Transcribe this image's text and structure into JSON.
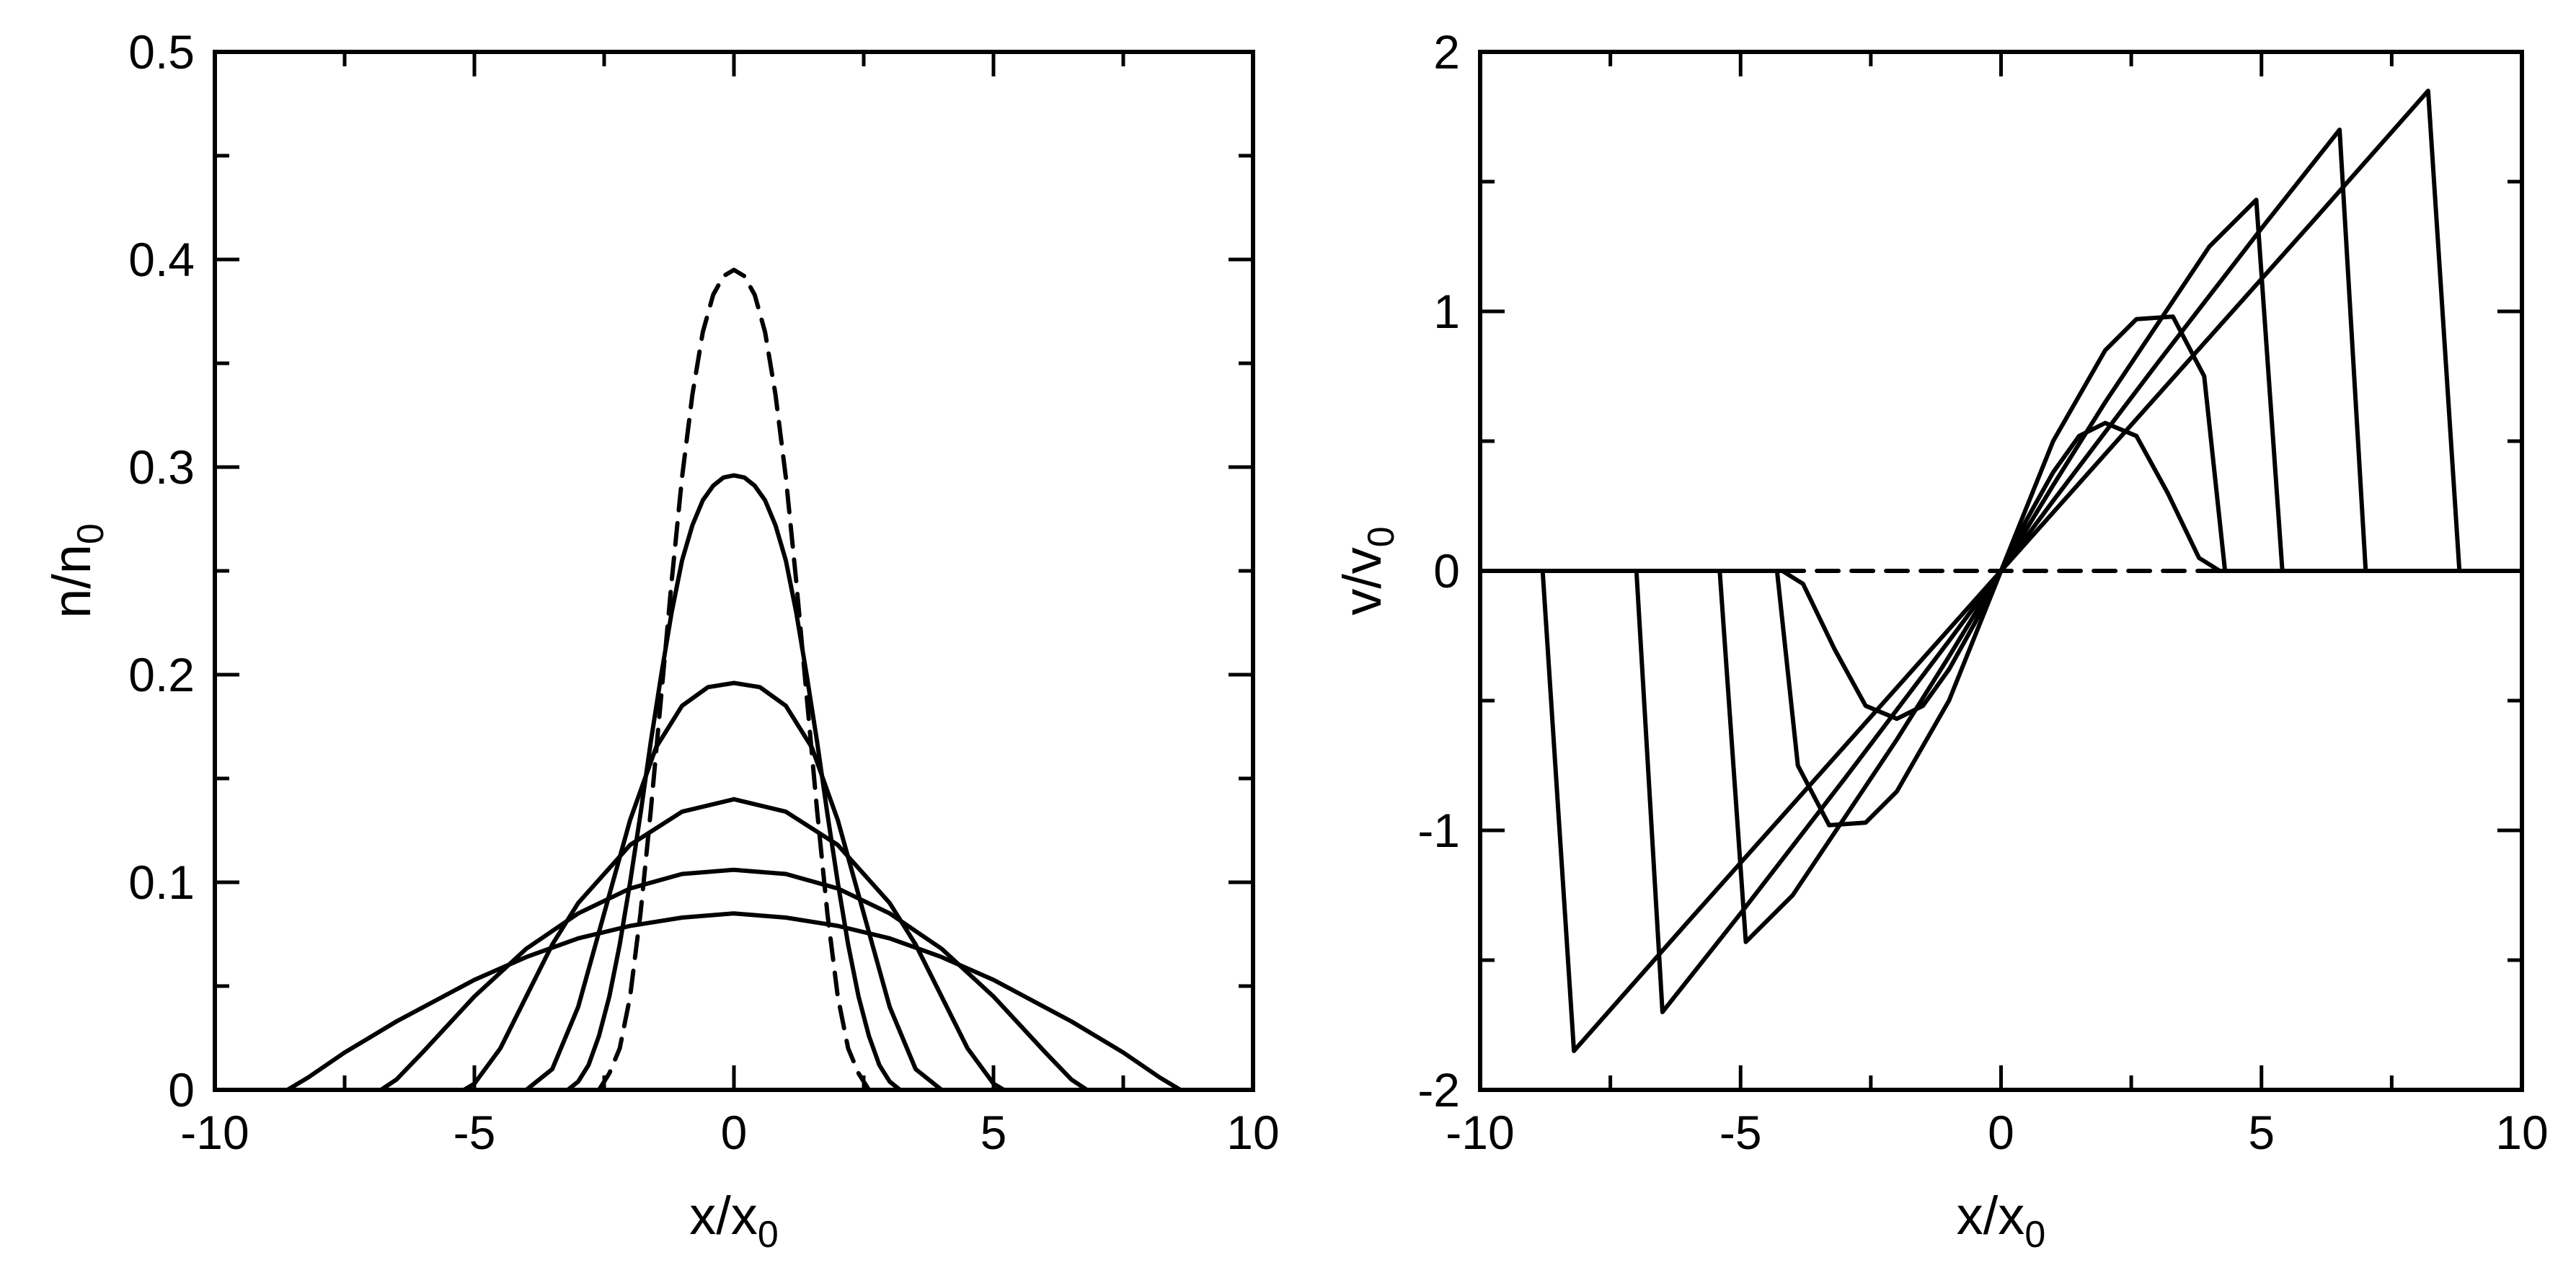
{
  "chart_data": [
    {
      "type": "line",
      "xlabel": "x/x",
      "xlabel_sub": "0",
      "ylabel": "n/n",
      "ylabel_sub": "0",
      "xlim": [
        -10,
        10
      ],
      "ylim": [
        0,
        0.5
      ],
      "x_ticks": [
        -10,
        -5,
        0,
        5,
        10
      ],
      "x_tick_labels": [
        "-10",
        "-5",
        "0",
        "5",
        "10"
      ],
      "y_ticks": [
        0,
        0.1,
        0.2,
        0.3,
        0.4,
        0.5
      ],
      "y_tick_labels": [
        "0",
        "0.1",
        "0.2",
        "0.3",
        "0.4",
        "0.5"
      ],
      "grid": false,
      "legend": false,
      "line_color": "#000000",
      "series": [
        {
          "style": "dashed",
          "x": [
            -2.6,
            -2.4,
            -2.2,
            -2.0,
            -1.8,
            -1.6,
            -1.4,
            -1.2,
            -1.0,
            -0.8,
            -0.6,
            -0.4,
            -0.2,
            0,
            0.2,
            0.4,
            0.6,
            0.8,
            1.0,
            1.2,
            1.4,
            1.6,
            1.8,
            2.0,
            2.2,
            2.4,
            2.6
          ],
          "y": [
            0.0,
            0.008,
            0.02,
            0.045,
            0.085,
            0.135,
            0.19,
            0.245,
            0.295,
            0.335,
            0.365,
            0.383,
            0.392,
            0.395,
            0.392,
            0.383,
            0.365,
            0.335,
            0.295,
            0.245,
            0.19,
            0.135,
            0.085,
            0.045,
            0.02,
            0.008,
            0.0
          ]
        },
        {
          "style": "solid",
          "x": [
            -3.2,
            -3.0,
            -2.8,
            -2.6,
            -2.4,
            -2.2,
            -2.0,
            -1.8,
            -1.6,
            -1.4,
            -1.2,
            -1.0,
            -0.8,
            -0.6,
            -0.4,
            -0.2,
            0,
            0.2,
            0.4,
            0.6,
            0.8,
            1.0,
            1.2,
            1.4,
            1.6,
            1.8,
            2.0,
            2.2,
            2.4,
            2.6,
            2.8,
            3.0,
            3.2
          ],
          "y": [
            0.0,
            0.004,
            0.012,
            0.026,
            0.045,
            0.07,
            0.1,
            0.133,
            0.168,
            0.2,
            0.23,
            0.255,
            0.272,
            0.284,
            0.291,
            0.295,
            0.296,
            0.295,
            0.291,
            0.284,
            0.272,
            0.255,
            0.23,
            0.2,
            0.168,
            0.133,
            0.1,
            0.07,
            0.045,
            0.026,
            0.012,
            0.004,
            0.0
          ]
        },
        {
          "style": "solid",
          "x": [
            -4.0,
            -3.5,
            -3.0,
            -2.5,
            -2.0,
            -1.5,
            -1.0,
            -0.5,
            0,
            0.5,
            1.0,
            1.5,
            2.0,
            2.5,
            3.0,
            3.5,
            4.0
          ],
          "y": [
            0.0,
            0.01,
            0.04,
            0.085,
            0.13,
            0.165,
            0.185,
            0.194,
            0.196,
            0.194,
            0.185,
            0.165,
            0.13,
            0.085,
            0.04,
            0.01,
            0.0
          ]
        },
        {
          "style": "solid",
          "x": [
            -5.2,
            -5.0,
            -4.5,
            -4.0,
            -3.5,
            -3.0,
            -2.0,
            -1.0,
            0,
            1.0,
            2.0,
            3.0,
            3.5,
            4.0,
            4.5,
            5.0,
            5.2
          ],
          "y": [
            0.0,
            0.003,
            0.02,
            0.045,
            0.07,
            0.09,
            0.118,
            0.134,
            0.14,
            0.134,
            0.118,
            0.09,
            0.07,
            0.045,
            0.02,
            0.003,
            0.0
          ]
        },
        {
          "style": "solid",
          "x": [
            -6.8,
            -6.5,
            -6.0,
            -5.0,
            -4.0,
            -3.0,
            -2.0,
            -1.0,
            0,
            1.0,
            2.0,
            3.0,
            4.0,
            5.0,
            6.0,
            6.5,
            6.8
          ],
          "y": [
            0.0,
            0.005,
            0.018,
            0.045,
            0.068,
            0.085,
            0.097,
            0.104,
            0.106,
            0.104,
            0.097,
            0.085,
            0.068,
            0.045,
            0.018,
            0.005,
            0.0
          ]
        },
        {
          "style": "solid",
          "x": [
            -8.6,
            -8.2,
            -7.5,
            -6.5,
            -5.0,
            -4.0,
            -3.0,
            -2.0,
            -1.0,
            0,
            1.0,
            2.0,
            3.0,
            4.0,
            5.0,
            6.5,
            7.5,
            8.2,
            8.6
          ],
          "y": [
            0.0,
            0.006,
            0.018,
            0.033,
            0.053,
            0.064,
            0.073,
            0.079,
            0.083,
            0.085,
            0.083,
            0.079,
            0.073,
            0.064,
            0.053,
            0.033,
            0.018,
            0.006,
            0.0
          ]
        }
      ]
    },
    {
      "type": "line",
      "xlabel": "x/x",
      "xlabel_sub": "0",
      "ylabel": "v/v",
      "ylabel_sub": "0",
      "xlim": [
        -10,
        10
      ],
      "ylim": [
        -2,
        2
      ],
      "x_ticks": [
        -10,
        -5,
        0,
        5,
        10
      ],
      "x_tick_labels": [
        "-10",
        "-5",
        "0",
        "5",
        "10"
      ],
      "y_ticks": [
        -2,
        -1,
        0,
        1,
        2
      ],
      "y_tick_labels": [
        "-2",
        "-1",
        "0",
        "1",
        "2"
      ],
      "grid": false,
      "legend": false,
      "line_color": "#000000",
      "series": [
        {
          "style": "dashed",
          "x": [
            -4.2,
            4.2
          ],
          "y": [
            0,
            0
          ]
        },
        {
          "style": "solid",
          "x": [
            -10,
            -4.2,
            -3.8,
            -3.2,
            -2.6,
            -2.0,
            -1.5,
            -1.0,
            -0.5,
            0,
            0.5,
            1.0,
            1.5,
            2.0,
            2.6,
            3.2,
            3.8,
            4.2,
            10
          ],
          "y": [
            0,
            0,
            -0.05,
            -0.3,
            -0.52,
            -0.57,
            -0.52,
            -0.38,
            -0.2,
            0,
            0.2,
            0.38,
            0.52,
            0.57,
            0.52,
            0.3,
            0.05,
            0,
            0
          ]
        },
        {
          "style": "solid",
          "x": [
            -10,
            -4.3,
            -3.9,
            -3.3,
            -2.6,
            -2.0,
            -1.0,
            0,
            1.0,
            2.0,
            2.6,
            3.3,
            3.9,
            4.3,
            10
          ],
          "y": [
            0,
            0,
            -0.75,
            -0.98,
            -0.97,
            -0.85,
            -0.5,
            0,
            0.5,
            0.85,
            0.97,
            0.98,
            0.75,
            0,
            0
          ]
        },
        {
          "style": "solid",
          "x": [
            -10,
            -5.4,
            -4.9,
            -4.0,
            -3.0,
            -2.0,
            -1.0,
            0,
            1.0,
            2.0,
            3.0,
            4.0,
            4.9,
            5.4,
            10
          ],
          "y": [
            0,
            0,
            -1.43,
            -1.25,
            -0.95,
            -0.65,
            -0.33,
            0,
            0.33,
            0.65,
            0.95,
            1.25,
            1.43,
            0,
            0
          ]
        },
        {
          "style": "solid",
          "x": [
            -10,
            -7.0,
            -6.5,
            -5.0,
            -3.0,
            -1.0,
            0,
            1.0,
            3.0,
            5.0,
            6.5,
            7.0,
            10
          ],
          "y": [
            0,
            0,
            -1.7,
            -1.32,
            -0.8,
            -0.27,
            0,
            0.27,
            0.8,
            1.32,
            1.7,
            0,
            0
          ]
        },
        {
          "style": "solid",
          "x": [
            -10,
            -8.8,
            -8.2,
            -6.0,
            -4.0,
            -2.0,
            0,
            2.0,
            4.0,
            6.0,
            8.2,
            8.8,
            10
          ],
          "y": [
            0,
            0,
            -1.85,
            -1.35,
            -0.9,
            -0.45,
            0,
            0.45,
            0.9,
            1.35,
            1.85,
            0,
            0
          ]
        }
      ]
    }
  ]
}
